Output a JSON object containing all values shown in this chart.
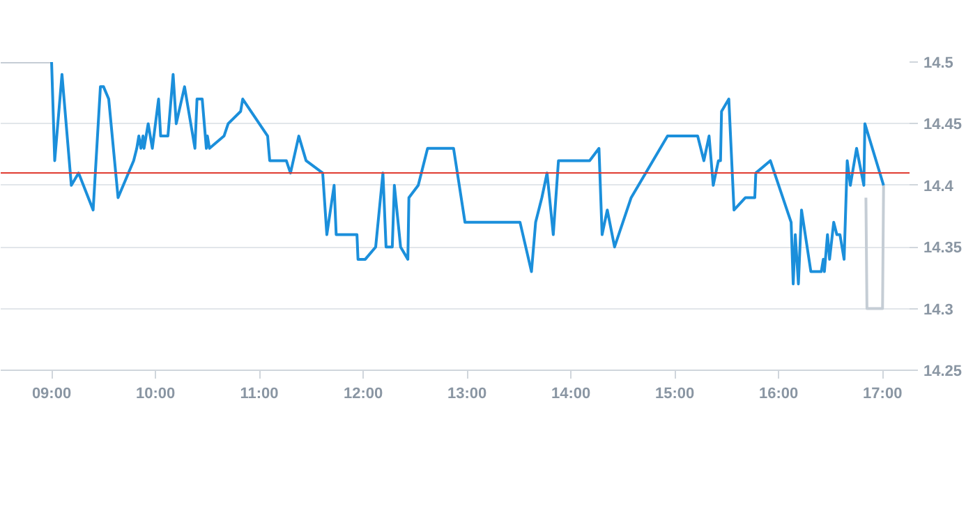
{
  "chart_data": {
    "type": "line",
    "xlim": [
      8.51,
      17.26
    ],
    "ylim": [
      14.25,
      14.5
    ],
    "xticks": [
      {
        "value": 9,
        "label": "09:00"
      },
      {
        "value": 10,
        "label": "10:00"
      },
      {
        "value": 11,
        "label": "11:00"
      },
      {
        "value": 12,
        "label": "12:00"
      },
      {
        "value": 13,
        "label": "13:00"
      },
      {
        "value": 14,
        "label": "14:00"
      },
      {
        "value": 15,
        "label": "15:00"
      },
      {
        "value": 16,
        "label": "16:00"
      },
      {
        "value": 17,
        "label": "17:00"
      }
    ],
    "yticks": [
      14.25,
      14.3,
      14.35,
      14.4,
      14.45,
      14.5
    ],
    "grid": "y",
    "line_style": "solid",
    "ref_lines": [
      {
        "axis": "y",
        "value": 14.41,
        "label": null,
        "color": "#e03c31"
      }
    ],
    "series": [
      {
        "color": "#c5cdd5",
        "x": [
          8.51,
          9.0
        ],
        "values": [
          14.5,
          14.5
        ]
      },
      {
        "color": "#c5cdd5",
        "x": [
          16.84,
          16.85,
          17.0,
          17.01
        ],
        "values": [
          14.39,
          14.3,
          14.3,
          14.4
        ]
      },
      {
        "color": "#1b8fdb",
        "x": [
          9.0,
          9.03,
          9.1,
          9.19,
          9.26,
          9.4,
          9.47,
          9.5,
          9.55,
          9.64,
          9.79,
          9.82,
          9.84,
          9.86,
          9.88,
          9.89,
          9.93,
          9.97,
          10.03,
          10.05,
          10.12,
          10.17,
          10.2,
          10.28,
          10.38,
          10.4,
          10.45,
          10.49,
          10.5,
          10.52,
          10.66,
          10.7,
          10.82,
          10.84,
          11.08,
          11.1,
          11.26,
          11.3,
          11.38,
          11.45,
          11.61,
          11.65,
          11.72,
          11.74,
          11.94,
          11.95,
          12.02,
          12.12,
          12.19,
          12.22,
          12.28,
          12.3,
          12.36,
          12.43,
          12.44,
          12.53,
          12.62,
          12.87,
          12.98,
          13.51,
          13.62,
          13.66,
          13.72,
          13.77,
          13.83,
          13.88,
          14.18,
          14.27,
          14.3,
          14.35,
          14.42,
          14.58,
          14.93,
          15.22,
          15.28,
          15.33,
          15.37,
          15.42,
          15.44,
          15.45,
          15.52,
          15.57,
          15.68,
          15.77,
          15.78,
          15.92,
          16.12,
          16.14,
          16.16,
          16.19,
          16.22,
          16.31,
          16.41,
          16.43,
          16.44,
          16.47,
          16.49,
          16.53,
          16.56,
          16.59,
          16.63,
          16.66,
          16.69,
          16.75,
          16.82,
          16.83,
          17.01
        ],
        "values": [
          14.5,
          14.42,
          14.49,
          14.4,
          14.41,
          14.38,
          14.48,
          14.48,
          14.47,
          14.39,
          14.42,
          14.43,
          14.44,
          14.43,
          14.44,
          14.43,
          14.45,
          14.43,
          14.47,
          14.44,
          14.44,
          14.49,
          14.45,
          14.48,
          14.43,
          14.47,
          14.47,
          14.43,
          14.44,
          14.43,
          14.44,
          14.45,
          14.46,
          14.47,
          14.44,
          14.42,
          14.42,
          14.41,
          14.44,
          14.42,
          14.41,
          14.36,
          14.4,
          14.36,
          14.36,
          14.34,
          14.34,
          14.35,
          14.41,
          14.35,
          14.35,
          14.4,
          14.35,
          14.34,
          14.39,
          14.4,
          14.43,
          14.43,
          14.37,
          14.37,
          14.33,
          14.37,
          14.39,
          14.41,
          14.36,
          14.42,
          14.42,
          14.43,
          14.36,
          14.38,
          14.35,
          14.39,
          14.44,
          14.44,
          14.42,
          14.44,
          14.4,
          14.42,
          14.42,
          14.46,
          14.47,
          14.38,
          14.39,
          14.39,
          14.41,
          14.42,
          14.37,
          14.32,
          14.36,
          14.32,
          14.38,
          14.33,
          14.33,
          14.34,
          14.33,
          14.36,
          14.34,
          14.37,
          14.36,
          14.36,
          14.34,
          14.42,
          14.4,
          14.43,
          14.4,
          14.45,
          14.4
        ]
      }
    ]
  }
}
